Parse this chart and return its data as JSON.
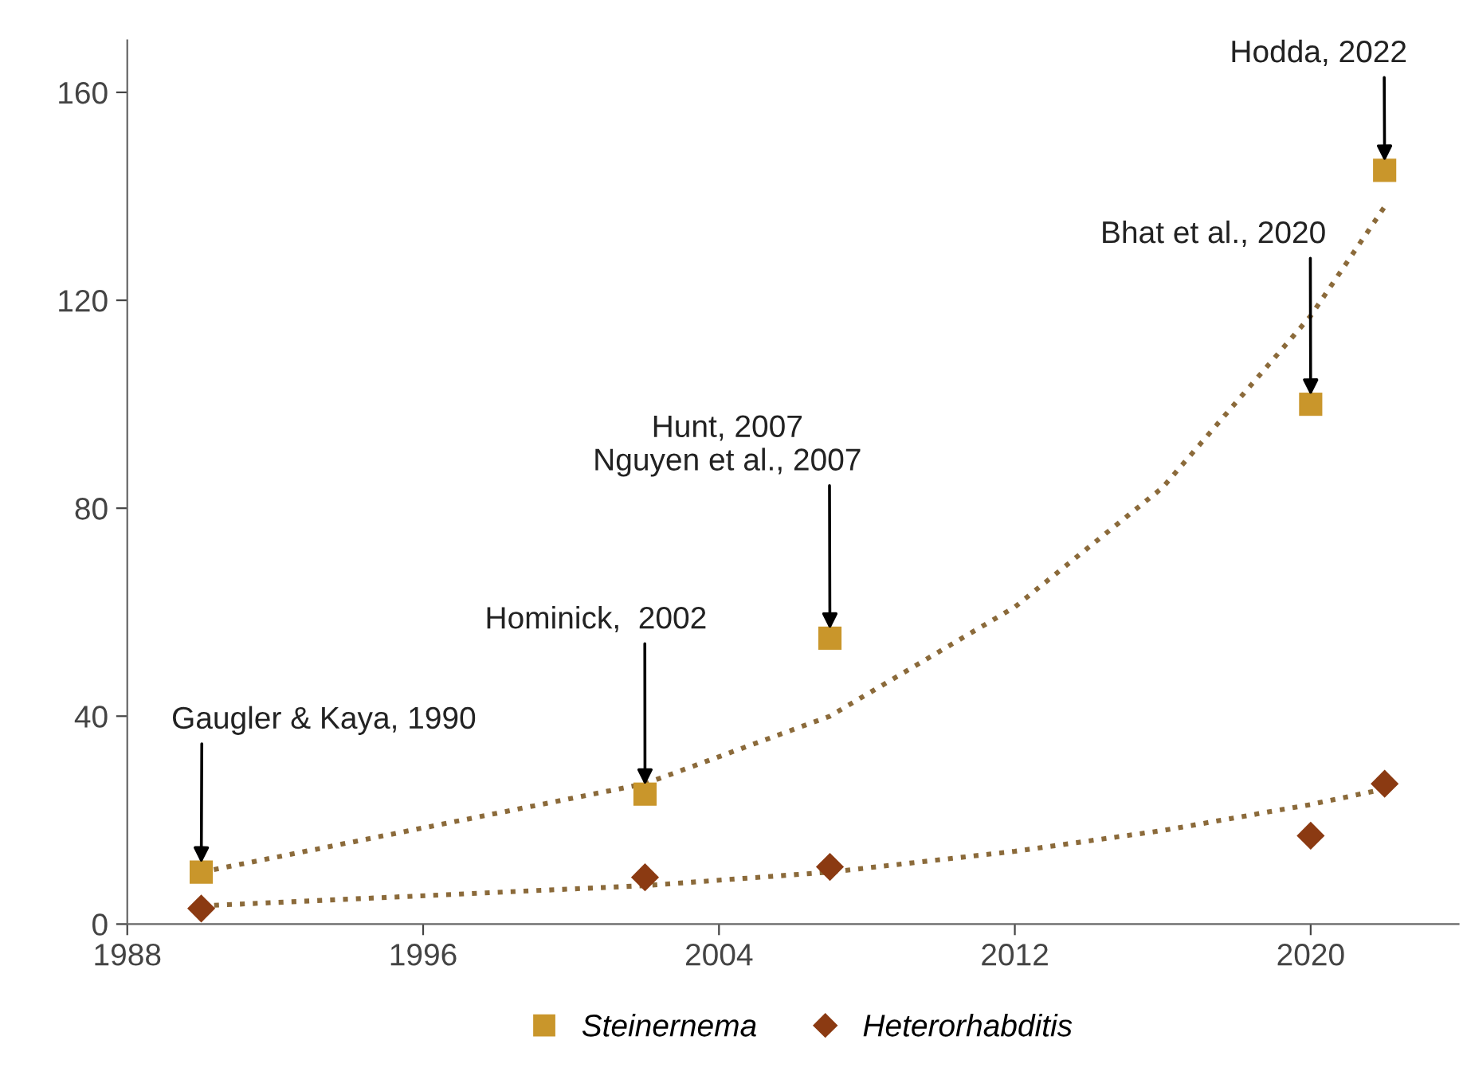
{
  "chart_data": {
    "type": "scatter",
    "x": [
      1990,
      2002,
      2007,
      2020,
      2022
    ],
    "series": [
      {
        "name": "Steinernema",
        "color": "#c9962b",
        "marker": "square",
        "values": [
          10,
          25,
          55,
          100,
          145
        ]
      },
      {
        "name": "Heterorhabditis",
        "color": "#8b3a12",
        "marker": "diamond",
        "values": [
          3,
          9,
          11,
          17,
          27
        ]
      },
      {
        "type": "line",
        "color": "#8b6a3a",
        "line_style": "dotted",
        "marker": "none",
        "x": [
          1990,
          2002,
          2007,
          2012,
          2016,
          2020,
          2022
        ],
        "values": [
          10,
          27,
          40,
          61,
          84,
          117,
          138
        ]
      },
      {
        "type": "line",
        "color": "#8b6a3a",
        "line_style": "dotted",
        "marker": "none",
        "x": [
          1990,
          2002,
          2007,
          2012,
          2016,
          2020,
          2022
        ],
        "values": [
          3.5,
          7.4,
          10,
          14,
          18,
          23,
          26
        ]
      }
    ],
    "annotations": [
      {
        "text": "Gaugler & Kaya, 1990",
        "x": 1990,
        "y": 10
      },
      {
        "text": "Hominick,  2002",
        "x": 2002,
        "y": 25
      },
      {
        "text": "Hunt, 2007\nNguyen et al., 2007",
        "x": 2007,
        "y": 55
      },
      {
        "text": "Bhat et al., 2020",
        "x": 2020,
        "y": 100
      },
      {
        "text": "Hodda, 2022",
        "x": 2022,
        "y": 145
      }
    ],
    "xlim": [
      1988,
      2024
    ],
    "xticks": [
      1988,
      1996,
      2004,
      2012,
      2020
    ],
    "ylim": [
      0,
      170
    ],
    "yticks": [
      0,
      40,
      80,
      120,
      160
    ],
    "grid": false,
    "legend": "bottom"
  }
}
